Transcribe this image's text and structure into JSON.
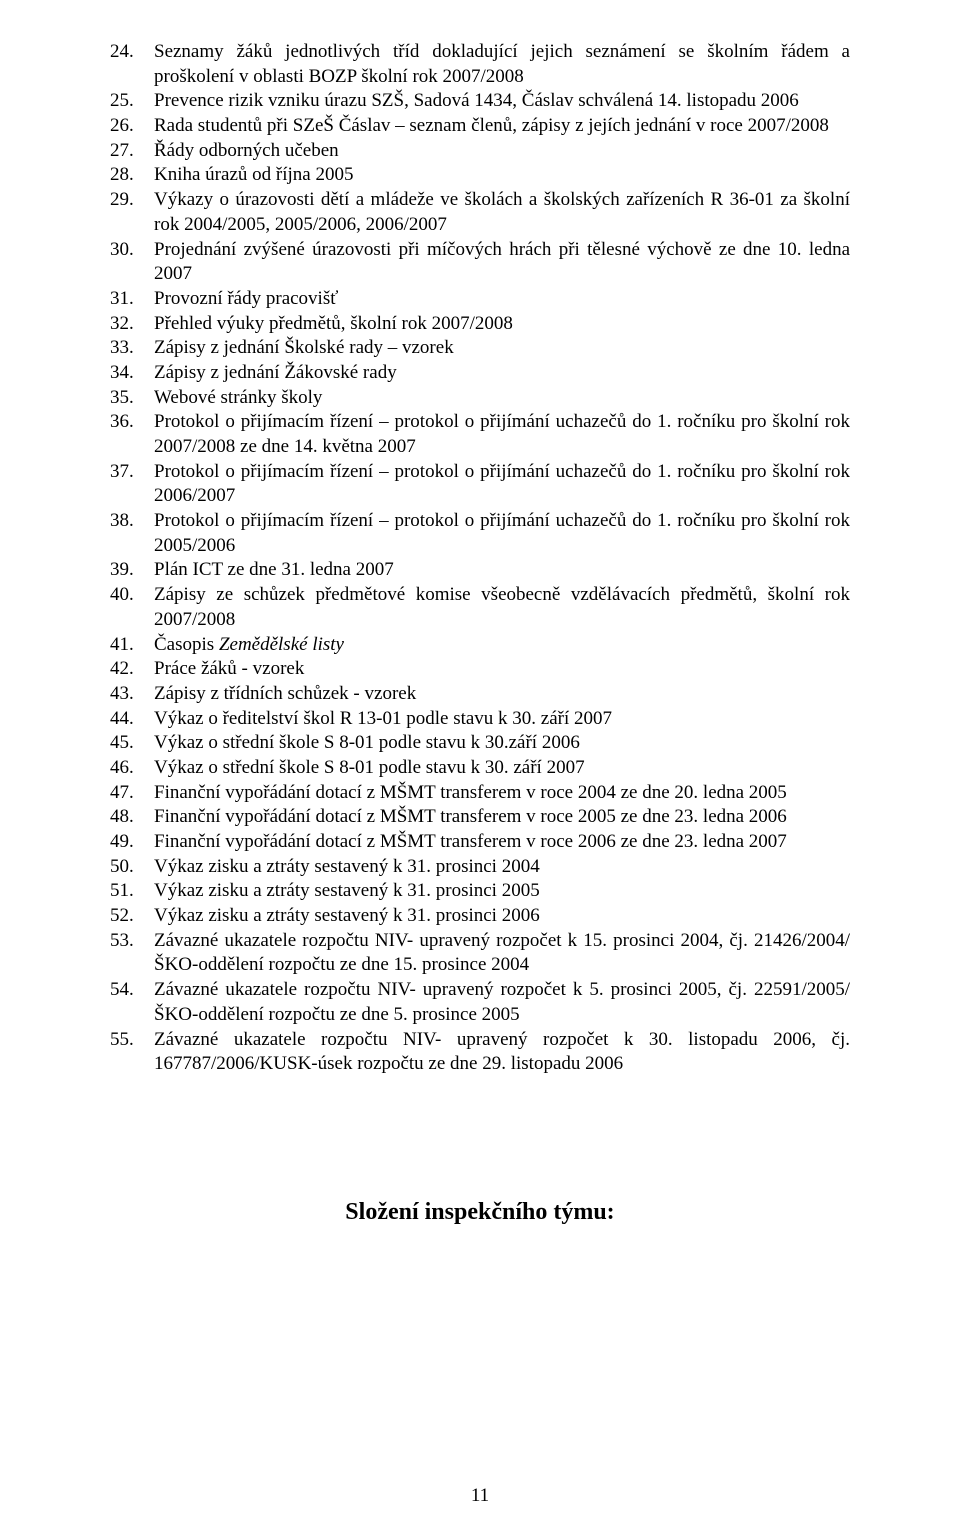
{
  "typography": {
    "body_font": "Times New Roman",
    "body_fontsize_pt": 12,
    "heading_fontsize_pt": 15,
    "text_color": "#000000",
    "background_color": "#ffffff"
  },
  "list": {
    "start_number": 24,
    "items": [
      "Seznamy žáků jednotlivých tříd dokladující jejich seznámení se školním řádem a proškolení v oblasti BOZP školní rok 2007/2008",
      "Prevence rizik vzniku úrazu SZŠ, Sadová 1434, Čáslav schválená 14. listopadu 2006",
      "Rada studentů při SZeŠ Čáslav – seznam členů, zápisy z jejích jednání v roce 2007/2008",
      "Řády odborných učeben",
      "Kniha úrazů od října 2005",
      "Výkazy o úrazovosti dětí a mládeže ve školách a školských zařízeních R 36-01 za školní rok 2004/2005, 2005/2006, 2006/2007",
      "Projednání zvýšené úrazovosti při míčových hrách při tělesné výchově ze dne 10. ledna 2007",
      "Provozní řády pracovišť",
      "Přehled výuky předmětů, školní rok 2007/2008",
      "Zápisy z jednání Školské rady – vzorek",
      "Zápisy z jednání Žákovské rady",
      "Webové stránky školy",
      "Protokol o přijímacím řízení – protokol o přijímání uchazečů do 1. ročníku pro školní rok 2007/2008 ze dne 14. května 2007",
      "Protokol o přijímacím řízení – protokol o přijímání uchazečů do 1. ročníku pro školní rok 2006/2007",
      "Protokol o přijímacím řízení – protokol o přijímání uchazečů do 1. ročníku pro školní rok 2005/2006",
      "Plán ICT ze dne 31. ledna 2007",
      "Zápisy ze schůzek předmětové komise všeobecně vzdělávacích předmětů, školní rok 2007/2008",
      "Časopis <span class=\"italic\">Zemědělské listy</span>",
      "Práce žáků - vzorek",
      "Zápisy z třídních schůzek - vzorek",
      "Výkaz o ředitelství škol R 13-01 podle stavu k 30. září 2007",
      "Výkaz o střední škole S 8-01 podle stavu k 30.září 2006",
      "Výkaz o střední škole S 8-01 podle stavu k 30. září 2007",
      "Finanční vypořádání dotací z MŠMT transferem v roce 2004 ze dne 20. ledna 2005",
      "Finanční vypořádání dotací z MŠMT transferem v roce 2005 ze dne 23. ledna 2006",
      "Finanční vypořádání dotací z MŠMT transferem v roce 2006 ze dne 23. ledna 2007",
      "Výkaz zisku a ztráty sestavený k 31. prosinci 2004",
      "Výkaz zisku a ztráty sestavený k 31. prosinci 2005",
      "Výkaz zisku a ztráty sestavený k 31. prosinci 2006",
      "Závazné ukazatele rozpočtu NIV- upravený rozpočet k 15. prosinci 2004, čj. 21426/2004/ŠKO-oddělení rozpočtu ze dne 15. prosince 2004",
      "Závazné ukazatele rozpočtu NIV- upravený rozpočet k 5. prosinci 2005, čj. 22591/2005/ŠKO-oddělení rozpočtu ze dne 5. prosince 2005",
      "Závazné ukazatele rozpočtu NIV- upravený rozpočet k 30. listopadu 2006, čj. 167787/2006/KUSK-úsek rozpočtu ze dne 29. listopadu 2006"
    ]
  },
  "heading": "Složení inspekčního týmu:",
  "page_number": "11"
}
